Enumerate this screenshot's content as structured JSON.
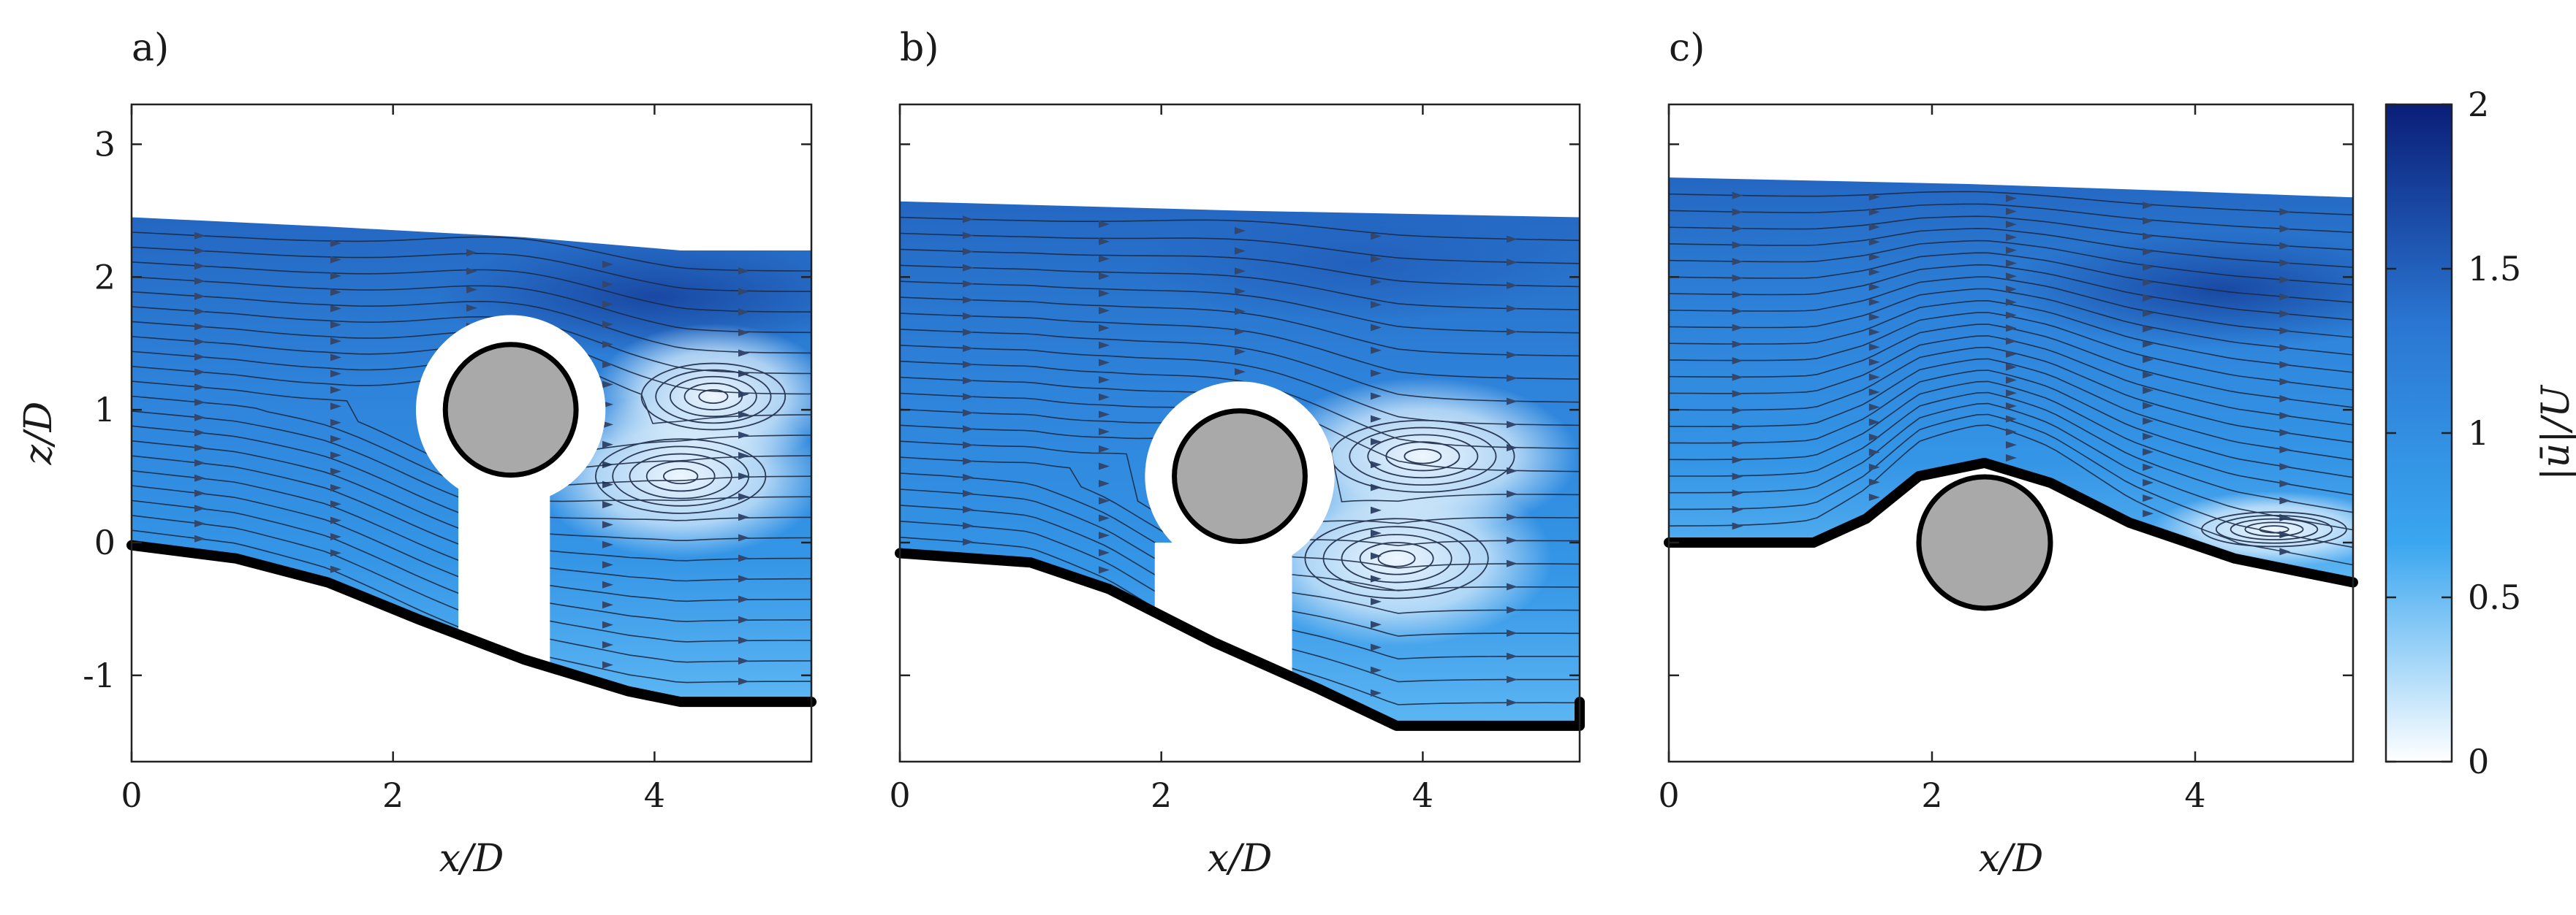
{
  "chart_data": [
    {
      "type": "heatmap",
      "panel_label": "a)",
      "xlabel": "x/D",
      "ylabel": "z/D",
      "xlim": [
        0,
        5.2
      ],
      "ylim": [
        -1.65,
        3.3
      ],
      "xticks": [
        0,
        2,
        4
      ],
      "yticks": [
        -1,
        0,
        1,
        2,
        3
      ],
      "show_x_tick_labels": true,
      "show_y_tick_labels": true,
      "show_y_label": true,
      "free_surface": [
        [
          0,
          2.45
        ],
        [
          1.5,
          2.38
        ],
        [
          3.0,
          2.3
        ],
        [
          4.2,
          2.2
        ],
        [
          5.2,
          2.2
        ]
      ],
      "bed": [
        [
          0,
          -0.02
        ],
        [
          0.8,
          -0.12
        ],
        [
          1.5,
          -0.3
        ],
        [
          2.2,
          -0.58
        ],
        [
          3.0,
          -0.88
        ],
        [
          3.8,
          -1.12
        ],
        [
          4.2,
          -1.2
        ],
        [
          5.2,
          -1.2
        ]
      ],
      "cylinder": {
        "x": 2.9,
        "z": 1.0,
        "d": 1.0
      },
      "shadow": {
        "x0": 2.5,
        "x1": 3.2,
        "z_top": 0.6
      },
      "high_speed_zone": {
        "x": 4.0,
        "z": 1.85,
        "level": 1.7
      },
      "vortices": [
        {
          "x": 4.45,
          "z": 1.1,
          "rx": 0.55,
          "ry": 0.25
        },
        {
          "x": 4.2,
          "z": 0.5,
          "rx": 0.65,
          "ry": 0.28
        }
      ]
    },
    {
      "type": "heatmap",
      "panel_label": "b)",
      "xlabel": "x/D",
      "ylabel": "",
      "xlim": [
        0,
        5.2
      ],
      "ylim": [
        -1.65,
        3.3
      ],
      "xticks": [
        0,
        2,
        4
      ],
      "yticks": [
        -1,
        0,
        1,
        2,
        3
      ],
      "show_x_tick_labels": true,
      "show_y_tick_labels": false,
      "show_y_label": false,
      "free_surface": [
        [
          0,
          2.57
        ],
        [
          2.6,
          2.5
        ],
        [
          5.2,
          2.45
        ]
      ],
      "bed": [
        [
          0,
          -0.08
        ],
        [
          1.0,
          -0.15
        ],
        [
          1.6,
          -0.35
        ],
        [
          2.4,
          -0.75
        ],
        [
          3.2,
          -1.1
        ],
        [
          3.8,
          -1.38
        ],
        [
          5.2,
          -1.38
        ],
        [
          5.2,
          -1.2
        ]
      ],
      "cylinder": {
        "x": 2.6,
        "z": 0.5,
        "d": 1.0
      },
      "shadow": {
        "x0": 1.95,
        "x1": 3.0,
        "z_top": 0.0
      },
      "high_speed_zone": {
        "x": 3.5,
        "z": 2.1,
        "level": 1.5
      },
      "vortices": [
        {
          "x": 4.0,
          "z": 0.65,
          "rx": 0.7,
          "ry": 0.27
        },
        {
          "x": 3.8,
          "z": -0.12,
          "rx": 0.7,
          "ry": 0.3
        }
      ]
    },
    {
      "type": "heatmap",
      "panel_label": "c)",
      "xlabel": "x/D",
      "ylabel": "",
      "xlim": [
        0,
        5.2
      ],
      "ylim": [
        -1.65,
        3.3
      ],
      "xticks": [
        0,
        2,
        4
      ],
      "yticks": [
        -1,
        0,
        1,
        2,
        3
      ],
      "show_x_tick_labels": true,
      "show_y_tick_labels": false,
      "show_y_label": false,
      "free_surface": [
        [
          0,
          2.75
        ],
        [
          2.3,
          2.7
        ],
        [
          3.8,
          2.65
        ],
        [
          5.2,
          2.6
        ]
      ],
      "bed": [
        [
          0,
          0.0
        ],
        [
          1.1,
          0.0
        ],
        [
          1.5,
          0.18
        ],
        [
          1.9,
          0.5
        ],
        [
          2.4,
          0.6
        ],
        [
          2.9,
          0.45
        ],
        [
          3.5,
          0.15
        ],
        [
          4.3,
          -0.12
        ],
        [
          5.2,
          -0.3
        ]
      ],
      "cylinder": {
        "x": 2.4,
        "z": 0.0,
        "d": 1.0
      },
      "shadow": null,
      "high_speed_zone": {
        "x": 4.2,
        "z": 1.9,
        "level": 1.7
      },
      "vortices": [
        {
          "x": 4.6,
          "z": 0.1,
          "rx": 0.55,
          "ry": 0.13
        }
      ]
    }
  ],
  "colorbar": {
    "label": "|ū|/U",
    "min": 0,
    "max": 2,
    "ticks": [
      0,
      0.5,
      1,
      1.5,
      2
    ],
    "tick_labels": [
      "0",
      "0.5",
      "1",
      "1.5",
      "2"
    ],
    "colors": [
      "#ffffff",
      "#3aa6f0",
      "#2a76d2",
      "#0a1e78"
    ]
  }
}
